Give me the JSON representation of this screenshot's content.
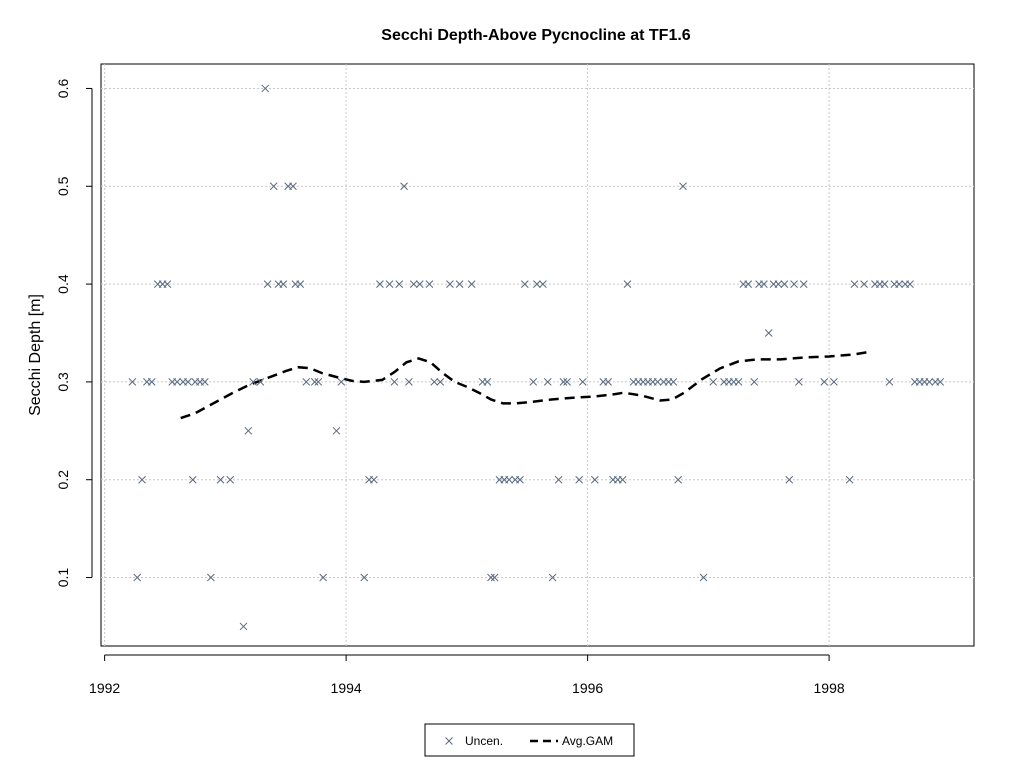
{
  "chart_data": {
    "type": "scatter",
    "title": "Secchi Depth-Above Pycnocline at TF1.6",
    "xlabel": "",
    "ylabel": "Secchi Depth [m]",
    "xlim": [
      1991.97,
      1999.2
    ],
    "ylim": [
      0.03,
      0.625
    ],
    "xticks": [
      1992,
      1994,
      1996,
      1998
    ],
    "xtick_labels": [
      "1992",
      "1994",
      "1996",
      "1998"
    ],
    "yticks": [
      0.1,
      0.2,
      0.3,
      0.4,
      0.5,
      0.6
    ],
    "ytick_labels": [
      "0.1",
      "0.2",
      "0.3",
      "0.4",
      "0.5",
      "0.6"
    ],
    "grid": true,
    "legend_position": "bottom-center",
    "series": [
      {
        "name": "Uncen.",
        "kind": "points",
        "marker": "x",
        "color": "#5a6a80",
        "x": [
          1992.23,
          1992.27,
          1992.31,
          1992.35,
          1992.39,
          1992.44,
          1992.48,
          1992.52,
          1992.56,
          1992.6,
          1992.65,
          1992.69,
          1992.73,
          1992.75,
          1992.79,
          1992.83,
          1992.88,
          1992.96,
          1993.04,
          1993.15,
          1993.19,
          1993.23,
          1993.29,
          1993.33,
          1993.35,
          1993.4,
          1993.44,
          1993.48,
          1993.52,
          1993.56,
          1993.58,
          1993.62,
          1993.67,
          1993.74,
          1993.77,
          1993.81,
          1993.92,
          1993.96,
          1994.15,
          1994.19,
          1994.23,
          1994.28,
          1994.36,
          1994.4,
          1994.44,
          1994.48,
          1994.52,
          1994.56,
          1994.61,
          1994.69,
          1994.73,
          1994.78,
          1994.86,
          1994.94,
          1995.04,
          1995.13,
          1995.17,
          1995.2,
          1995.23,
          1995.27,
          1995.31,
          1995.35,
          1995.4,
          1995.44,
          1995.48,
          1995.55,
          1995.58,
          1995.63,
          1995.67,
          1995.71,
          1995.76,
          1995.8,
          1995.83,
          1995.93,
          1995.96,
          1996.06,
          1996.13,
          1996.17,
          1996.21,
          1996.25,
          1996.29,
          1996.33,
          1996.38,
          1996.42,
          1996.46,
          1996.5,
          1996.54,
          1996.58,
          1996.63,
          1996.67,
          1996.71,
          1996.75,
          1996.79,
          1996.96,
          1997.04,
          1997.13,
          1997.17,
          1997.21,
          1997.25,
          1997.29,
          1997.33,
          1997.38,
          1997.42,
          1997.46,
          1997.5,
          1997.54,
          1997.58,
          1997.63,
          1997.67,
          1997.71,
          1997.75,
          1997.79,
          1997.96,
          1998.04,
          1998.17,
          1998.21,
          1998.29,
          1998.38,
          1998.42,
          1998.46,
          1998.5,
          1998.54,
          1998.58,
          1998.63,
          1998.67,
          1998.71,
          1998.75,
          1998.79,
          1998.83,
          1998.88,
          1998.92
        ],
        "y": [
          0.3,
          0.1,
          0.2,
          0.3,
          0.3,
          0.4,
          0.4,
          0.4,
          0.3,
          0.3,
          0.3,
          0.3,
          0.2,
          0.3,
          0.3,
          0.3,
          0.1,
          0.2,
          0.2,
          0.05,
          0.25,
          0.3,
          0.3,
          0.6,
          0.4,
          0.5,
          0.4,
          0.4,
          0.5,
          0.5,
          0.4,
          0.4,
          0.3,
          0.3,
          0.3,
          0.1,
          0.25,
          0.3,
          0.1,
          0.2,
          0.2,
          0.4,
          0.4,
          0.3,
          0.4,
          0.5,
          0.3,
          0.4,
          0.4,
          0.4,
          0.3,
          0.3,
          0.4,
          0.4,
          0.4,
          0.3,
          0.3,
          0.1,
          0.1,
          0.2,
          0.2,
          0.2,
          0.2,
          0.2,
          0.4,
          0.3,
          0.4,
          0.4,
          0.3,
          0.1,
          0.2,
          0.3,
          0.3,
          0.2,
          0.3,
          0.2,
          0.3,
          0.3,
          0.2,
          0.2,
          0.2,
          0.4,
          0.3,
          0.3,
          0.3,
          0.3,
          0.3,
          0.3,
          0.3,
          0.3,
          0.3,
          0.2,
          0.5,
          0.1,
          0.3,
          0.3,
          0.3,
          0.3,
          0.3,
          0.4,
          0.4,
          0.3,
          0.4,
          0.4,
          0.35,
          0.4,
          0.4,
          0.4,
          0.2,
          0.4,
          0.3,
          0.4,
          0.3,
          0.3,
          0.2,
          0.4,
          0.4,
          0.4,
          0.4,
          0.4,
          0.3,
          0.4,
          0.4,
          0.4,
          0.4,
          0.3,
          0.3,
          0.3,
          0.3,
          0.3,
          0.3
        ]
      },
      {
        "name": "Avg.GAM",
        "kind": "line",
        "style": "dashed",
        "color": "#000000",
        "x": [
          1992.63,
          1992.75,
          1992.9,
          1993.05,
          1993.2,
          1993.35,
          1993.5,
          1993.6,
          1993.7,
          1993.8,
          1993.95,
          1994.05,
          1994.15,
          1994.3,
          1994.4,
          1994.5,
          1994.6,
          1994.7,
          1994.8,
          1994.9,
          1995.0,
          1995.1,
          1995.2,
          1995.3,
          1995.4,
          1995.5,
          1995.7,
          1995.9,
          1996.05,
          1996.2,
          1996.3,
          1996.45,
          1996.6,
          1996.7,
          1996.8,
          1996.95,
          1997.1,
          1997.25,
          1997.4,
          1997.6,
          1997.8,
          1998.0,
          1998.2,
          1998.35
        ],
        "y": [
          0.263,
          0.268,
          0.278,
          0.288,
          0.297,
          0.304,
          0.311,
          0.315,
          0.314,
          0.309,
          0.304,
          0.301,
          0.3,
          0.302,
          0.31,
          0.32,
          0.324,
          0.32,
          0.309,
          0.3,
          0.295,
          0.289,
          0.282,
          0.278,
          0.278,
          0.279,
          0.282,
          0.284,
          0.285,
          0.287,
          0.289,
          0.286,
          0.281,
          0.282,
          0.289,
          0.303,
          0.314,
          0.321,
          0.323,
          0.323,
          0.325,
          0.326,
          0.328,
          0.331
        ]
      }
    ]
  }
}
